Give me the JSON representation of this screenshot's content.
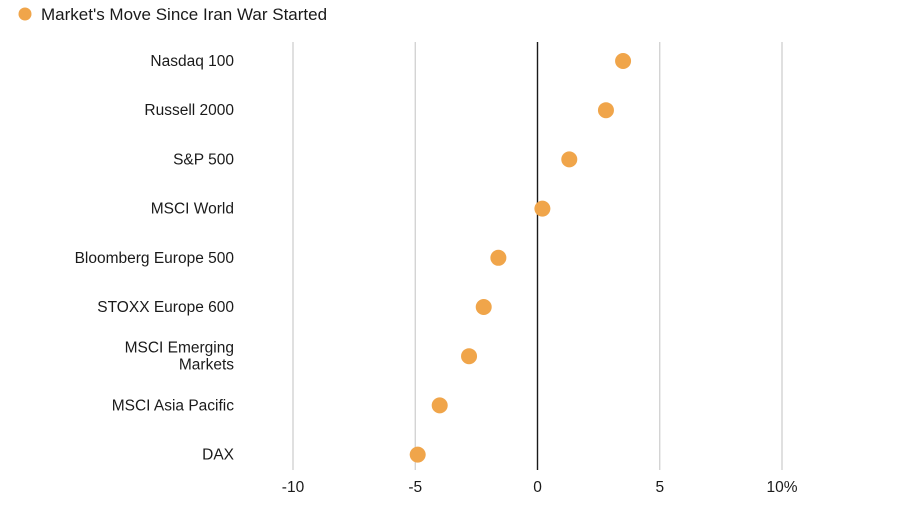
{
  "chart_data": {
    "type": "scatter",
    "orientation": "horizontal",
    "legend": {
      "position": "top-left",
      "entries": [
        {
          "label": "Market's Move Since Iran War Started",
          "color": "#F0A54A"
        }
      ]
    },
    "series": [
      {
        "name": "Market's Move Since Iran War Started",
        "color": "#F0A54A"
      }
    ],
    "categories": [
      "Nasdaq 100",
      "Russell 2000",
      "S&P 500",
      "MSCI World",
      "Bloomberg Europe 500",
      "STOXX Europe 600",
      "MSCI Emerging Markets",
      "MSCI Asia Pacific",
      "DAX"
    ],
    "category_lines": [
      [
        "Nasdaq 100"
      ],
      [
        "Russell 2000"
      ],
      [
        "S&P 500"
      ],
      [
        "MSCI World"
      ],
      [
        "Bloomberg Europe 500"
      ],
      [
        "STOXX Europe 600"
      ],
      [
        "MSCI Emerging",
        "Markets"
      ],
      [
        "MSCI Asia Pacific"
      ],
      [
        "DAX"
      ]
    ],
    "values": [
      3.5,
      2.8,
      1.3,
      0.2,
      -1.6,
      -2.2,
      -2.8,
      -4.0,
      -4.9
    ],
    "xlim": [
      -10,
      10
    ],
    "xticks": [
      -10,
      -5,
      0,
      5,
      10
    ],
    "xtick_labels": [
      "-10",
      "-5",
      "0",
      "5",
      "10%"
    ],
    "xlabel": "",
    "ylabel": "",
    "grid": true,
    "zero_line": true,
    "colors": {
      "marker": "#F0A54A",
      "grid": "#CCCCCC",
      "zero_line": "#1a1a1a",
      "text": "#1a1a1a"
    }
  }
}
